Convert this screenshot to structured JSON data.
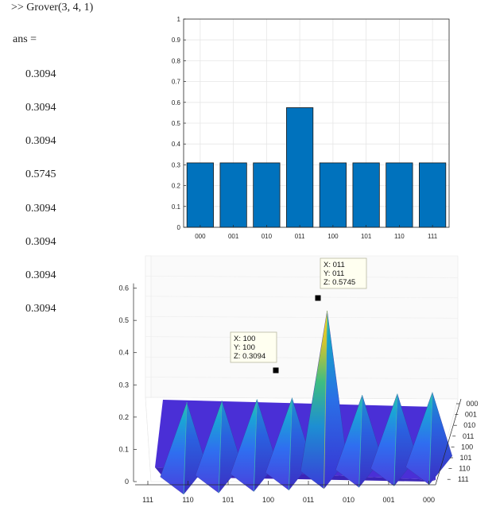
{
  "console": {
    "command": ">> Grover(3, 4, 1)",
    "ans_label": "ans =",
    "values": [
      "0.3094",
      "0.3094",
      "0.3094",
      "0.5745",
      "0.3094",
      "0.3094",
      "0.3094",
      "0.3094"
    ]
  },
  "chart_data": [
    {
      "type": "bar",
      "categories": [
        "000",
        "001",
        "010",
        "011",
        "100",
        "101",
        "110",
        "111"
      ],
      "values": [
        0.3094,
        0.3094,
        0.3094,
        0.5745,
        0.3094,
        0.3094,
        0.3094,
        0.3094
      ],
      "ylim": [
        0,
        1
      ],
      "yticks": [
        "0",
        "0.1",
        "0.2",
        "0.3",
        "0.4",
        "0.5",
        "0.6",
        "0.7",
        "0.8",
        "0.9",
        "1"
      ],
      "grid": true,
      "bar_color": "#0072BD"
    },
    {
      "type": "surface",
      "x_categories": [
        "111",
        "110",
        "101",
        "100",
        "011",
        "010",
        "001",
        "000"
      ],
      "y_categories": [
        "000",
        "001",
        "010",
        "011",
        "100",
        "101",
        "110",
        "111"
      ],
      "z_ticks": [
        "0",
        "0.1",
        "0.2",
        "0.3",
        "0.4",
        "0.5",
        "0.6"
      ],
      "peaks": [
        {
          "label": "111",
          "z": 0.3094
        },
        {
          "label": "110",
          "z": 0.3094
        },
        {
          "label": "101",
          "z": 0.3094
        },
        {
          "label": "100",
          "z": 0.3094
        },
        {
          "label": "011",
          "z": 0.5745
        },
        {
          "label": "010",
          "z": 0.3094
        },
        {
          "label": "001",
          "z": 0.3094
        },
        {
          "label": "000",
          "z": 0.3094
        }
      ],
      "colormap": "parula",
      "datatips": [
        {
          "x": "X: 011",
          "y": "Y: 011",
          "z": "Z: 0.5745"
        },
        {
          "x": "X: 100",
          "y": "Y: 100",
          "z": "Z: 0.3094"
        }
      ]
    }
  ]
}
